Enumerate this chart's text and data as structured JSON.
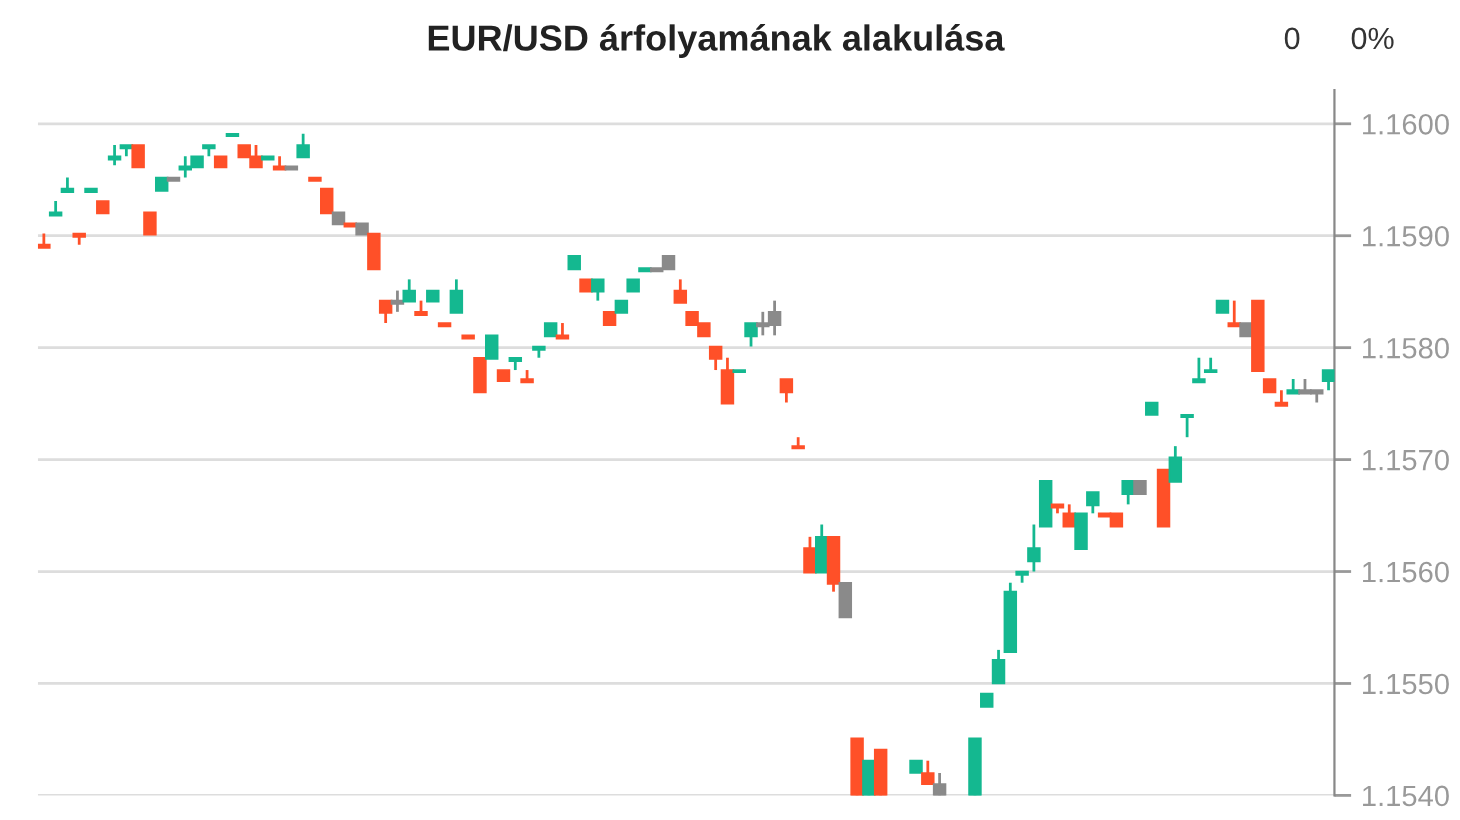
{
  "chart_data": {
    "type": "candlestick",
    "title": "EUR/USD árfolyamának alakulása",
    "annotations": [
      "0",
      "0%"
    ],
    "categories": [
      null,
      null,
      null,
      null,
      null,
      null,
      null,
      null,
      null,
      null,
      null,
      null,
      null,
      null,
      null,
      null,
      null,
      null,
      null,
      null,
      null,
      null,
      null,
      null,
      null,
      null,
      null,
      null,
      null,
      null,
      null,
      null,
      null,
      null,
      null,
      null,
      null,
      null,
      null,
      null,
      null,
      null,
      null,
      null,
      null,
      null,
      null,
      null,
      null,
      null,
      null,
      null,
      null,
      null,
      null,
      null,
      null,
      null,
      null,
      null,
      null,
      null,
      null,
      null,
      null,
      null,
      null,
      null,
      null,
      null,
      null,
      null,
      null,
      null,
      null,
      null,
      null,
      null,
      null,
      null,
      null,
      null,
      null,
      null,
      null,
      null,
      null,
      null,
      null,
      null,
      null,
      null,
      null,
      null,
      null,
      null,
      null,
      null,
      null,
      null,
      null,
      null,
      null,
      null,
      null,
      null,
      null,
      null,
      null,
      null
    ],
    "ohlc": [
      [
        1.15892,
        1.15902,
        1.15889,
        1.15889
      ],
      [
        1.15918,
        1.15931,
        1.15918,
        1.15921
      ],
      [
        1.15939,
        1.15952,
        1.15939,
        1.15942
      ],
      [
        1.15902,
        1.15902,
        1.15892,
        1.15899
      ],
      [
        1.15939,
        1.15942,
        1.15939,
        1.15942
      ],
      [
        1.15931,
        1.15931,
        1.1592,
        1.1592
      ],
      [
        1.15968,
        1.15981,
        1.15963,
        1.15971
      ],
      [
        1.15978,
        1.15981,
        1.15971,
        1.15981
      ],
      [
        1.15981,
        1.15981,
        1.15961,
        1.15961
      ],
      [
        1.15921,
        1.15921,
        1.15901,
        1.15901
      ],
      [
        1.1594,
        1.15952,
        1.1594,
        1.15952
      ],
      [
        1.15952,
        1.15952,
        1.15949,
        1.15949
      ],
      [
        1.15959,
        1.15971,
        1.15952,
        1.15962
      ],
      [
        1.15961,
        1.15971,
        1.15961,
        1.15971
      ],
      [
        1.15978,
        1.15981,
        1.15971,
        1.15981
      ],
      [
        1.15971,
        1.15971,
        1.15961,
        1.15961
      ],
      [
        1.15989,
        1.15991,
        1.15989,
        1.15991
      ],
      [
        1.15981,
        1.15981,
        1.1597,
        1.1597
      ],
      [
        1.15971,
        1.15981,
        1.15961,
        1.15961
      ],
      [
        1.15968,
        1.15971,
        1.15968,
        1.15971
      ],
      [
        1.15962,
        1.15971,
        1.15959,
        1.15959
      ],
      [
        1.15962,
        1.15962,
        1.15959,
        1.15959
      ],
      [
        1.1597,
        1.15991,
        1.1597,
        1.15981
      ],
      [
        1.15952,
        1.15952,
        1.15949,
        1.15949
      ],
      [
        1.15942,
        1.15942,
        1.1592,
        1.1592
      ],
      [
        1.15921,
        1.15921,
        1.1591,
        1.1591
      ],
      [
        1.15911,
        1.15911,
        1.15908,
        1.15908
      ],
      [
        1.15911,
        1.15911,
        1.15901,
        1.15901
      ],
      [
        1.15902,
        1.15902,
        1.1587,
        1.1587
      ],
      [
        1.15842,
        1.15842,
        1.15822,
        1.15831
      ],
      [
        1.15842,
        1.15851,
        1.15832,
        1.15839
      ],
      [
        1.15841,
        1.15861,
        1.15841,
        1.15851
      ],
      [
        1.15832,
        1.15842,
        1.15829,
        1.15829
      ],
      [
        1.15841,
        1.15851,
        1.15841,
        1.15851
      ],
      [
        1.15822,
        1.15822,
        1.15819,
        1.15819
      ],
      [
        1.15831,
        1.15861,
        1.15831,
        1.15851
      ],
      [
        1.15811,
        1.15811,
        1.15808,
        1.15808
      ],
      [
        1.15791,
        1.15791,
        1.1576,
        1.1576
      ],
      [
        1.1579,
        1.15811,
        1.1579,
        1.15811
      ],
      [
        1.1578,
        1.1578,
        1.1577,
        1.1577
      ],
      [
        1.15788,
        1.15791,
        1.1578,
        1.15791
      ],
      [
        1.15772,
        1.1578,
        1.15769,
        1.15769
      ],
      [
        1.15798,
        1.15801,
        1.15791,
        1.15801
      ],
      [
        1.1581,
        1.15822,
        1.1581,
        1.15822
      ],
      [
        1.15811,
        1.15822,
        1.15808,
        1.15808
      ],
      [
        1.1587,
        1.15882,
        1.1587,
        1.15882
      ],
      [
        1.15861,
        1.15861,
        1.1585,
        1.1585
      ],
      [
        1.1585,
        1.15861,
        1.15842,
        1.15861
      ],
      [
        1.15832,
        1.15832,
        1.1582,
        1.1582
      ],
      [
        1.15831,
        1.15842,
        1.15831,
        1.15842
      ],
      [
        1.1585,
        1.15861,
        1.1585,
        1.15861
      ],
      [
        1.15868,
        1.15871,
        1.15868,
        1.15871
      ],
      [
        1.15871,
        1.15871,
        1.15868,
        1.15868
      ],
      [
        1.15882,
        1.15882,
        1.1587,
        1.1587
      ],
      [
        1.15851,
        1.15861,
        1.1584,
        1.1584
      ],
      [
        1.15832,
        1.15832,
        1.1582,
        1.1582
      ],
      [
        1.15822,
        1.15822,
        1.1581,
        1.1581
      ],
      [
        1.15801,
        1.15801,
        1.1578,
        1.1579
      ],
      [
        1.1578,
        1.15791,
        1.1575,
        1.1575
      ],
      [
        1.15778,
        1.1578,
        1.15778,
        1.1578
      ],
      [
        1.1581,
        1.15822,
        1.15801,
        1.15822
      ],
      [
        1.15822,
        1.15832,
        1.15811,
        1.15819
      ],
      [
        1.15832,
        1.15842,
        1.15811,
        1.1582
      ],
      [
        1.15772,
        1.15772,
        1.15751,
        1.1576
      ],
      [
        1.15712,
        1.1572,
        1.1571,
        1.1571
      ],
      [
        1.15621,
        1.15631,
        1.15599,
        1.15599
      ],
      [
        1.15599,
        1.15642,
        1.15599,
        1.15631
      ],
      [
        1.15631,
        1.15631,
        1.15582,
        1.15589
      ],
      [
        1.1559,
        1.1559,
        1.15559,
        1.15559
      ],
      [
        1.15451,
        1.15451,
        1.154,
        1.154
      ],
      [
        1.154,
        1.15431,
        1.154,
        1.15431
      ],
      [
        1.15441,
        1.15441,
        1.154,
        1.154
      ],
      null,
      null,
      [
        1.1542,
        1.15431,
        1.1542,
        1.15431
      ],
      [
        1.1542,
        1.15431,
        1.1541,
        1.1541
      ],
      [
        1.1541,
        1.1542,
        1.154,
        1.154
      ],
      null,
      null,
      [
        1.154,
        1.15451,
        1.154,
        1.15451
      ],
      [
        1.15479,
        1.15491,
        1.15479,
        1.15491
      ],
      [
        1.155,
        1.1553,
        1.155,
        1.15521
      ],
      [
        1.15528,
        1.1559,
        1.15528,
        1.15582
      ],
      [
        1.15597,
        1.156,
        1.1559,
        1.156
      ],
      [
        1.15609,
        1.15642,
        1.156,
        1.15621
      ],
      [
        1.1564,
        1.15681,
        1.1564,
        1.15681
      ],
      [
        1.1566,
        1.1566,
        1.15652,
        1.15657
      ],
      [
        1.15652,
        1.1566,
        1.1564,
        1.1564
      ],
      [
        1.1562,
        1.15652,
        1.1562,
        1.15652
      ],
      [
        1.15659,
        1.15671,
        1.15652,
        1.15671
      ],
      [
        1.15652,
        1.15652,
        1.15649,
        1.15649
      ],
      [
        1.15652,
        1.15652,
        1.1564,
        1.1564
      ],
      [
        1.15669,
        1.15681,
        1.1566,
        1.15681
      ],
      [
        1.15681,
        1.15681,
        1.15669,
        1.15669
      ],
      [
        1.1574,
        1.15751,
        1.1574,
        1.15751
      ],
      [
        1.15691,
        1.15691,
        1.1564,
        1.1564
      ],
      [
        1.1568,
        1.15712,
        1.1568,
        1.15702
      ],
      [
        1.15738,
        1.1574,
        1.1572,
        1.1574
      ],
      [
        1.15769,
        1.15791,
        1.15769,
        1.15772
      ],
      [
        1.15778,
        1.15791,
        1.15778,
        1.1578
      ],
      [
        1.15831,
        1.15842,
        1.15831,
        1.15842
      ],
      [
        1.15822,
        1.15842,
        1.15819,
        1.15819
      ],
      [
        1.15822,
        1.15822,
        1.1581,
        1.1581
      ],
      [
        1.15842,
        1.15842,
        1.15779,
        1.15779
      ],
      [
        1.15772,
        1.15772,
        1.1576,
        1.1576
      ],
      [
        1.15751,
        1.15762,
        1.15748,
        1.15748
      ],
      [
        1.15759,
        1.15772,
        1.15759,
        1.15762
      ],
      [
        1.15762,
        1.15772,
        1.15759,
        1.15759
      ],
      [
        1.15762,
        1.15762,
        1.15751,
        1.15759
      ],
      [
        1.1577,
        1.1578,
        1.15762,
        1.1578
      ]
    ],
    "colors": [
      "#ff5028",
      "#14b890",
      "#14b890",
      "#ff5028",
      "#14b890",
      "#ff5028",
      "#14b890",
      "#14b890",
      "#ff5028",
      "#ff5028",
      "#14b890",
      "#8a8a8a",
      "#14b890",
      "#14b890",
      "#14b890",
      "#ff5028",
      "#14b890",
      "#ff5028",
      "#ff5028",
      "#14b890",
      "#ff5028",
      "#8a8a8a",
      "#14b890",
      "#ff5028",
      "#ff5028",
      "#8a8a8a",
      "#ff5028",
      "#8a8a8a",
      "#ff5028",
      "#ff5028",
      "#8a8a8a",
      "#14b890",
      "#ff5028",
      "#14b890",
      "#ff5028",
      "#14b890",
      "#ff5028",
      "#ff5028",
      "#14b890",
      "#ff5028",
      "#14b890",
      "#ff5028",
      "#14b890",
      "#14b890",
      "#ff5028",
      "#14b890",
      "#ff5028",
      "#14b890",
      "#ff5028",
      "#14b890",
      "#14b890",
      "#14b890",
      "#8a8a8a",
      "#8a8a8a",
      "#ff5028",
      "#ff5028",
      "#ff5028",
      "#ff5028",
      "#ff5028",
      "#14b890",
      "#14b890",
      "#8a8a8a",
      "#8a8a8a",
      "#ff5028",
      "#ff5028",
      "#ff5028",
      "#14b890",
      "#ff5028",
      "#8a8a8a",
      "#ff5028",
      "#14b890",
      "#ff5028",
      null,
      null,
      "#14b890",
      "#ff5028",
      "#8a8a8a",
      null,
      null,
      "#14b890",
      "#14b890",
      "#14b890",
      "#14b890",
      "#14b890",
      "#14b890",
      "#14b890",
      "#ff5028",
      "#ff5028",
      "#14b890",
      "#14b890",
      "#ff5028",
      "#ff5028",
      "#14b890",
      "#8a8a8a",
      "#14b890",
      "#ff5028",
      "#14b890",
      "#14b890",
      "#14b890",
      "#14b890",
      "#14b890",
      "#ff5028",
      "#8a8a8a",
      "#ff5028",
      "#ff5028",
      "#ff5028",
      "#14b890",
      "#8a8a8a",
      "#8a8a8a",
      "#14b890"
    ],
    "ylim": [
      1.154,
      1.1603
    ],
    "yticks": [
      {
        "value": 1.154,
        "label": "1.1540"
      },
      {
        "value": 1.155,
        "label": "1.1550"
      },
      {
        "value": 1.156,
        "label": "1.1560"
      },
      {
        "value": 1.157,
        "label": "1.1570"
      },
      {
        "value": 1.158,
        "label": "1.1580"
      },
      {
        "value": 1.159,
        "label": "1.1590"
      },
      {
        "value": 1.16,
        "label": "1.1600"
      }
    ],
    "grid": "y",
    "tick_labels": "y"
  }
}
